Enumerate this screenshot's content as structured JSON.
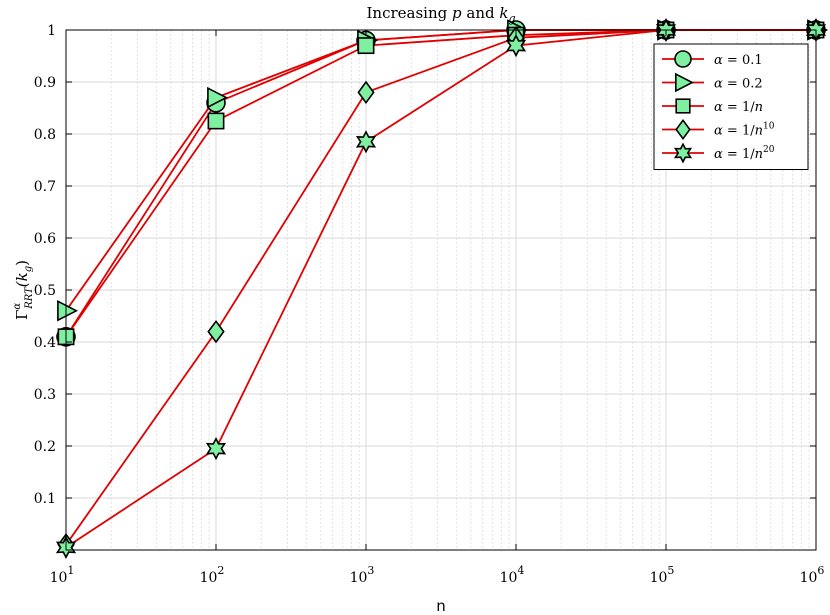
{
  "chart_data": {
    "type": "line",
    "title": "Increasing p and k_g",
    "title_parts": {
      "pre": "Increasing ",
      "p": "p",
      "mid": " and ",
      "k": "k",
      "sub": "g"
    },
    "xlabel": "n",
    "ylabel": "Γ^α_RRT(k_g)",
    "ylabel_parts": {
      "gamma": "Γ",
      "sup": "α",
      "sub": "RRT",
      "arg": "(k",
      "argsub": "g",
      "close": ")"
    },
    "x_scale": "log",
    "xlim": [
      10,
      1000000
    ],
    "ylim": [
      0,
      1
    ],
    "x_ticks": [
      10,
      100,
      1000,
      10000,
      100000,
      1000000
    ],
    "x_tick_labels": [
      {
        "base": "10",
        "exp": "1"
      },
      {
        "base": "10",
        "exp": "2"
      },
      {
        "base": "10",
        "exp": "3"
      },
      {
        "base": "10",
        "exp": "4"
      },
      {
        "base": "10",
        "exp": "5"
      },
      {
        "base": "10",
        "exp": "6"
      }
    ],
    "y_ticks": [
      0.1,
      0.2,
      0.3,
      0.4,
      0.5,
      0.6,
      0.7,
      0.8,
      0.9,
      1
    ],
    "y_tick_labels": [
      "0.1",
      "0.2",
      "0.3",
      "0.4",
      "0.5",
      "0.6",
      "0.7",
      "0.8",
      "0.9",
      "1"
    ],
    "grid": true,
    "legend_position": "top-right",
    "line_color": "#e00000",
    "marker_fill": "#7ff0a0",
    "marker_stroke": "#000000",
    "x": [
      10,
      100,
      1000,
      10000,
      100000,
      1000000
    ],
    "series": [
      {
        "name": "α = 0.1",
        "legend": {
          "lhs": "α",
          "eq": " = ",
          "rhs": "0.1",
          "sup": ""
        },
        "marker": "circle",
        "values": [
          0.41,
          0.86,
          0.98,
          1.0,
          1.0,
          1.0
        ]
      },
      {
        "name": "α = 0.2",
        "legend": {
          "lhs": "α",
          "eq": " = ",
          "rhs": "0.2",
          "sup": ""
        },
        "marker": "triangle-right",
        "values": [
          0.46,
          0.87,
          0.98,
          1.0,
          1.0,
          1.0
        ]
      },
      {
        "name": "α = 1/n",
        "legend": {
          "lhs": "α",
          "eq": " = ",
          "rhs": "1/n",
          "sup": ""
        },
        "marker": "square",
        "values": [
          0.41,
          0.825,
          0.97,
          0.99,
          1.0,
          1.0
        ]
      },
      {
        "name": "α = 1/n^10",
        "legend": {
          "lhs": "α",
          "eq": " = ",
          "rhs": "1/n",
          "sup": "10"
        },
        "marker": "diamond",
        "values": [
          0.01,
          0.42,
          0.88,
          0.985,
          1.0,
          1.0
        ]
      },
      {
        "name": "α = 1/n^20",
        "legend": {
          "lhs": "α",
          "eq": " = ",
          "rhs": "1/n",
          "sup": "20"
        },
        "marker": "hexagram",
        "values": [
          0.005,
          0.195,
          0.785,
          0.97,
          1.0,
          1.0
        ]
      }
    ]
  }
}
